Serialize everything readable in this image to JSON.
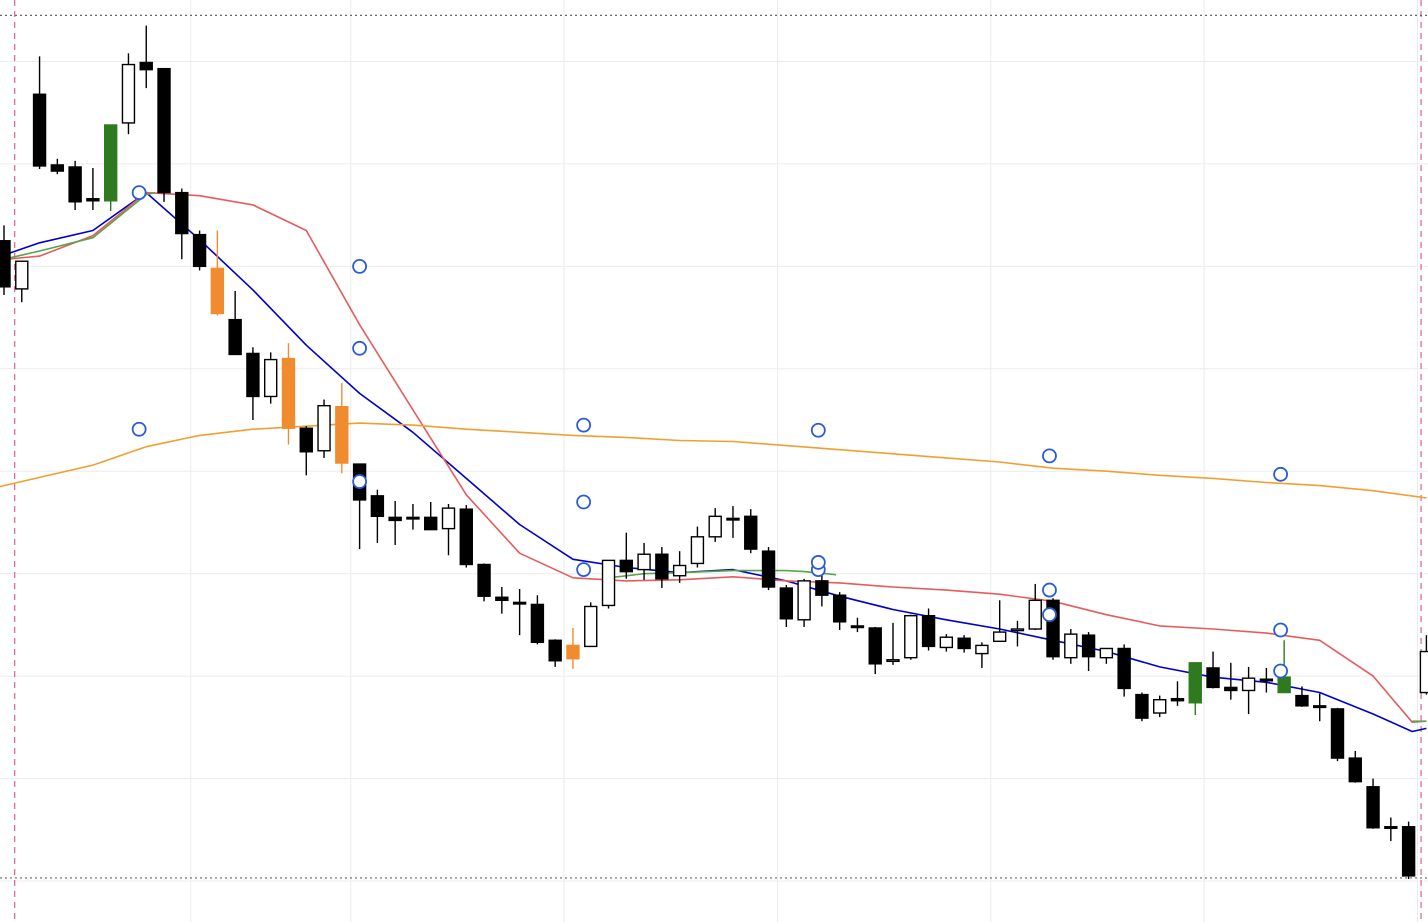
{
  "chart_data": {
    "type": "candlestick",
    "title": "",
    "xlabel": "",
    "ylabel": "",
    "grid": true,
    "ylim": [
      -0.4,
      8.6
    ],
    "colors": {
      "bear": "#000000",
      "bull_fill": "#ffffff",
      "up_marker": "#2f7a1f",
      "down_marker": "#f08c2e",
      "ma_fast": "#0000cc",
      "ma_mid": "#e65c5c",
      "ma_slow": "#f0a030",
      "ma_alt": "#5aa34a",
      "marker_ring": "#2a5bd7",
      "session_line": "#e06aa0",
      "bound_line": "#666666"
    },
    "candles": [
      {
        "i": 0,
        "o": 6.25,
        "h": 6.4,
        "l": 5.72,
        "c": 5.8,
        "kind": "bear"
      },
      {
        "i": 1,
        "o": 5.78,
        "h": 6.05,
        "l": 5.65,
        "c": 6.05,
        "kind": "bull"
      },
      {
        "i": 2,
        "o": 7.68,
        "h": 8.05,
        "l": 6.95,
        "c": 6.98,
        "kind": "bear"
      },
      {
        "i": 3,
        "o": 6.99,
        "h": 7.05,
        "l": 6.9,
        "c": 6.93,
        "kind": "bear"
      },
      {
        "i": 4,
        "o": 6.97,
        "h": 7.03,
        "l": 6.55,
        "c": 6.63,
        "kind": "bear"
      },
      {
        "i": 5,
        "o": 6.66,
        "h": 6.96,
        "l": 6.55,
        "c": 6.64,
        "kind": "bear"
      },
      {
        "i": 6,
        "o": 6.64,
        "h": 7.38,
        "l": 6.54,
        "c": 7.38,
        "kind": "up-marker"
      },
      {
        "i": 7,
        "o": 7.4,
        "h": 8.08,
        "l": 7.29,
        "c": 7.97,
        "kind": "bull"
      },
      {
        "i": 8,
        "o": 7.99,
        "h": 8.35,
        "l": 7.74,
        "c": 7.92,
        "kind": "bear"
      },
      {
        "i": 9,
        "o": 7.93,
        "h": 7.93,
        "l": 6.63,
        "c": 6.72,
        "kind": "bear"
      },
      {
        "i": 10,
        "o": 6.72,
        "h": 6.76,
        "l": 6.07,
        "c": 6.32,
        "kind": "bear"
      },
      {
        "i": 11,
        "o": 6.31,
        "h": 6.35,
        "l": 5.96,
        "c": 6.0,
        "kind": "bear"
      },
      {
        "i": 12,
        "o": 5.98,
        "h": 6.35,
        "l": 5.52,
        "c": 5.54,
        "kind": "down-marker"
      },
      {
        "i": 13,
        "o": 5.48,
        "h": 5.76,
        "l": 5.14,
        "c": 5.14,
        "kind": "bear"
      },
      {
        "i": 14,
        "o": 5.15,
        "h": 5.21,
        "l": 4.5,
        "c": 4.73,
        "kind": "bear"
      },
      {
        "i": 15,
        "o": 4.73,
        "h": 5.16,
        "l": 4.66,
        "c": 5.09,
        "kind": "bull"
      },
      {
        "i": 16,
        "o": 5.1,
        "h": 5.25,
        "l": 4.26,
        "c": 4.42,
        "kind": "down-marker"
      },
      {
        "i": 17,
        "o": 4.42,
        "h": 4.44,
        "l": 3.96,
        "c": 4.19,
        "kind": "bear"
      },
      {
        "i": 18,
        "o": 4.2,
        "h": 4.7,
        "l": 4.13,
        "c": 4.64,
        "kind": "bull"
      },
      {
        "i": 19,
        "o": 4.63,
        "h": 4.86,
        "l": 3.98,
        "c": 4.08,
        "kind": "down-marker"
      },
      {
        "i": 20,
        "o": 4.07,
        "h": 4.07,
        "l": 3.24,
        "c": 3.72,
        "kind": "bear"
      },
      {
        "i": 21,
        "o": 3.76,
        "h": 3.82,
        "l": 3.3,
        "c": 3.56,
        "kind": "bear"
      },
      {
        "i": 22,
        "o": 3.55,
        "h": 3.71,
        "l": 3.28,
        "c": 3.52,
        "kind": "bear"
      },
      {
        "i": 23,
        "o": 3.55,
        "h": 3.68,
        "l": 3.43,
        "c": 3.54,
        "kind": "bear"
      },
      {
        "i": 24,
        "o": 3.55,
        "h": 3.7,
        "l": 3.43,
        "c": 3.43,
        "kind": "bear"
      },
      {
        "i": 25,
        "o": 3.44,
        "h": 3.68,
        "l": 3.18,
        "c": 3.64,
        "kind": "bull"
      },
      {
        "i": 26,
        "o": 3.63,
        "h": 3.67,
        "l": 3.06,
        "c": 3.09,
        "kind": "bear"
      },
      {
        "i": 27,
        "o": 3.09,
        "h": 3.1,
        "l": 2.73,
        "c": 2.78,
        "kind": "bear"
      },
      {
        "i": 28,
        "o": 2.77,
        "h": 2.87,
        "l": 2.61,
        "c": 2.74,
        "kind": "bear"
      },
      {
        "i": 29,
        "o": 2.72,
        "h": 2.85,
        "l": 2.4,
        "c": 2.72,
        "kind": "bear"
      },
      {
        "i": 30,
        "o": 2.7,
        "h": 2.79,
        "l": 2.31,
        "c": 2.33,
        "kind": "bear"
      },
      {
        "i": 31,
        "o": 2.35,
        "h": 2.36,
        "l": 2.09,
        "c": 2.15,
        "kind": "bear"
      },
      {
        "i": 32,
        "o": 2.3,
        "h": 2.47,
        "l": 2.07,
        "c": 2.17,
        "kind": "down-marker"
      },
      {
        "i": 33,
        "o": 2.29,
        "h": 2.72,
        "l": 2.29,
        "c": 2.68,
        "kind": "bull"
      },
      {
        "i": 34,
        "o": 2.69,
        "h": 3.13,
        "l": 2.66,
        "c": 3.13,
        "kind": "bull"
      },
      {
        "i": 35,
        "o": 3.13,
        "h": 3.4,
        "l": 2.95,
        "c": 3.02,
        "kind": "bear"
      },
      {
        "i": 36,
        "o": 3.04,
        "h": 3.3,
        "l": 2.94,
        "c": 3.19,
        "kind": "bull"
      },
      {
        "i": 37,
        "o": 3.19,
        "h": 3.26,
        "l": 2.86,
        "c": 2.95,
        "kind": "bear"
      },
      {
        "i": 38,
        "o": 2.98,
        "h": 3.22,
        "l": 2.91,
        "c": 3.08,
        "kind": "bull"
      },
      {
        "i": 39,
        "o": 3.1,
        "h": 3.46,
        "l": 3.06,
        "c": 3.36,
        "kind": "bull"
      },
      {
        "i": 40,
        "o": 3.36,
        "h": 3.64,
        "l": 3.31,
        "c": 3.56,
        "kind": "bull"
      },
      {
        "i": 41,
        "o": 3.54,
        "h": 3.66,
        "l": 3.35,
        "c": 3.54,
        "kind": "bear"
      },
      {
        "i": 42,
        "o": 3.56,
        "h": 3.63,
        "l": 3.2,
        "c": 3.24,
        "kind": "bear"
      },
      {
        "i": 43,
        "o": 3.22,
        "h": 3.26,
        "l": 2.84,
        "c": 2.87,
        "kind": "bear"
      },
      {
        "i": 44,
        "o": 2.86,
        "h": 2.89,
        "l": 2.48,
        "c": 2.56,
        "kind": "bear"
      },
      {
        "i": 45,
        "o": 2.55,
        "h": 2.95,
        "l": 2.48,
        "c": 2.93,
        "kind": "bull"
      },
      {
        "i": 46,
        "o": 2.93,
        "h": 3.03,
        "l": 2.68,
        "c": 2.79,
        "kind": "bear"
      },
      {
        "i": 47,
        "o": 2.79,
        "h": 2.82,
        "l": 2.45,
        "c": 2.53,
        "kind": "bear"
      },
      {
        "i": 48,
        "o": 2.49,
        "h": 2.57,
        "l": 2.43,
        "c": 2.49,
        "kind": "bear"
      },
      {
        "i": 49,
        "o": 2.47,
        "h": 2.48,
        "l": 2.02,
        "c": 2.12,
        "kind": "bear"
      },
      {
        "i": 50,
        "o": 2.15,
        "h": 2.52,
        "l": 2.11,
        "c": 2.16,
        "kind": "bull"
      },
      {
        "i": 51,
        "o": 2.18,
        "h": 2.6,
        "l": 2.16,
        "c": 2.59,
        "kind": "bull"
      },
      {
        "i": 52,
        "o": 2.59,
        "h": 2.66,
        "l": 2.25,
        "c": 2.29,
        "kind": "bear"
      },
      {
        "i": 53,
        "o": 2.28,
        "h": 2.41,
        "l": 2.24,
        "c": 2.38,
        "kind": "bull"
      },
      {
        "i": 54,
        "o": 2.37,
        "h": 2.4,
        "l": 2.23,
        "c": 2.27,
        "kind": "bear"
      },
      {
        "i": 55,
        "o": 2.22,
        "h": 2.33,
        "l": 2.08,
        "c": 2.3,
        "kind": "bull"
      },
      {
        "i": 56,
        "o": 2.34,
        "h": 2.74,
        "l": 2.34,
        "c": 2.43,
        "kind": "bull"
      },
      {
        "i": 57,
        "o": 2.45,
        "h": 2.54,
        "l": 2.29,
        "c": 2.46,
        "kind": "bull"
      },
      {
        "i": 58,
        "o": 2.46,
        "h": 2.9,
        "l": 2.45,
        "c": 2.74,
        "kind": "bull"
      },
      {
        "i": 59,
        "o": 2.74,
        "h": 2.76,
        "l": 2.16,
        "c": 2.19,
        "kind": "bear"
      },
      {
        "i": 60,
        "o": 2.18,
        "h": 2.46,
        "l": 2.12,
        "c": 2.41,
        "kind": "bull"
      },
      {
        "i": 61,
        "o": 2.4,
        "h": 2.43,
        "l": 2.05,
        "c": 2.19,
        "kind": "bear"
      },
      {
        "i": 62,
        "o": 2.18,
        "h": 2.27,
        "l": 2.12,
        "c": 2.27,
        "kind": "bull"
      },
      {
        "i": 63,
        "o": 2.27,
        "h": 2.31,
        "l": 1.8,
        "c": 1.88,
        "kind": "bear"
      },
      {
        "i": 64,
        "o": 1.82,
        "h": 1.84,
        "l": 1.56,
        "c": 1.59,
        "kind": "bear"
      },
      {
        "i": 65,
        "o": 1.64,
        "h": 1.81,
        "l": 1.6,
        "c": 1.77,
        "kind": "bull"
      },
      {
        "i": 66,
        "o": 1.78,
        "h": 1.95,
        "l": 1.71,
        "c": 1.76,
        "kind": "bear"
      },
      {
        "i": 67,
        "o": 1.74,
        "h": 2.08,
        "l": 1.62,
        "c": 2.13,
        "kind": "up-marker"
      },
      {
        "i": 68,
        "o": 2.08,
        "h": 2.24,
        "l": 1.88,
        "c": 1.89,
        "kind": "bear"
      },
      {
        "i": 69,
        "o": 1.89,
        "h": 2.13,
        "l": 1.77,
        "c": 1.86,
        "kind": "bear"
      },
      {
        "i": 70,
        "o": 1.86,
        "h": 2.09,
        "l": 1.63,
        "c": 1.98,
        "kind": "bull"
      },
      {
        "i": 71,
        "o": 1.97,
        "h": 2.08,
        "l": 1.84,
        "c": 1.96,
        "kind": "bear"
      },
      {
        "i": 72,
        "o": 1.99,
        "h": 2.35,
        "l": 1.84,
        "c": 1.84,
        "kind": "up-marker"
      },
      {
        "i": 73,
        "o": 1.81,
        "h": 1.9,
        "l": 1.7,
        "c": 1.71,
        "kind": "bear"
      },
      {
        "i": 74,
        "o": 1.71,
        "h": 1.83,
        "l": 1.56,
        "c": 1.7,
        "kind": "bear"
      },
      {
        "i": 75,
        "o": 1.68,
        "h": 1.69,
        "l": 1.17,
        "c": 1.2,
        "kind": "bear"
      },
      {
        "i": 76,
        "o": 1.2,
        "h": 1.27,
        "l": 0.96,
        "c": 0.97,
        "kind": "bear"
      },
      {
        "i": 77,
        "o": 0.92,
        "h": 1.0,
        "l": 0.51,
        "c": 0.52,
        "kind": "bear"
      },
      {
        "i": 78,
        "o": 0.53,
        "h": 0.62,
        "l": 0.39,
        "c": 0.52,
        "kind": "bear"
      },
      {
        "i": 79,
        "o": 0.53,
        "h": 0.58,
        "l": 0.02,
        "c": 0.05,
        "kind": "bear"
      },
      {
        "i": 80,
        "o": 1.84,
        "h": 2.4,
        "l": 1.82,
        "c": 2.24,
        "kind": "bull"
      }
    ],
    "series": [
      {
        "name": "",
        "key": "ma_fast",
        "x": [
          -1,
          2,
          5,
          8,
          11,
          14,
          17,
          20,
          23,
          26,
          29,
          32,
          35,
          38,
          41,
          44,
          47,
          50,
          53,
          56,
          59,
          62,
          65,
          68,
          71,
          74,
          77,
          79.2,
          80
        ],
        "y": [
          6.05,
          6.23,
          6.35,
          6.72,
          6.26,
          5.77,
          5.23,
          4.76,
          4.38,
          3.93,
          3.48,
          3.14,
          3.06,
          3.01,
          3.04,
          2.93,
          2.78,
          2.65,
          2.55,
          2.46,
          2.35,
          2.24,
          2.09,
          1.99,
          1.94,
          1.84,
          1.63,
          1.46,
          1.49
        ]
      },
      {
        "name": "",
        "key": "ma_mid",
        "x": [
          -1,
          2,
          5,
          8,
          11,
          14,
          17,
          20,
          23,
          26,
          29,
          32,
          35,
          38,
          41,
          44,
          47,
          50,
          53,
          56,
          59,
          62,
          65,
          68,
          71,
          74,
          77,
          79.2,
          80
        ],
        "y": [
          6.05,
          6.1,
          6.3,
          6.72,
          6.69,
          6.6,
          6.35,
          5.43,
          4.6,
          3.77,
          3.2,
          2.96,
          2.93,
          2.94,
          2.97,
          2.93,
          2.91,
          2.87,
          2.84,
          2.8,
          2.73,
          2.6,
          2.49,
          2.46,
          2.42,
          2.35,
          2.0,
          1.55,
          1.56
        ]
      },
      {
        "name": "",
        "key": "ma_alt",
        "x": [
          -1,
          2,
          5,
          8,
          8.5
        ],
        "y": [
          6.03,
          6.15,
          6.28,
          6.7,
          6.72
        ]
      },
      {
        "name": "",
        "key": "ma_alt2",
        "x": [
          34,
          36,
          38,
          41,
          44,
          45,
          46.8
        ],
        "y": [
          2.96,
          3.0,
          3.01,
          3.03,
          3.03,
          3.02,
          2.99
        ]
      },
      {
        "name": "",
        "key": "ma_alt3",
        "x": [
          79.2,
          80
        ],
        "y": [
          1.56,
          1.56
        ]
      },
      {
        "name": "",
        "key": "ma_slow",
        "x": [
          -1,
          2,
          5,
          8,
          11,
          14,
          17,
          20,
          23,
          26,
          29,
          32,
          35,
          38,
          41,
          44,
          47,
          50,
          53,
          56,
          59,
          62,
          65,
          68,
          71,
          74,
          77,
          80
        ],
        "y": [
          3.82,
          3.94,
          4.06,
          4.24,
          4.35,
          4.41,
          4.44,
          4.47,
          4.45,
          4.41,
          4.38,
          4.35,
          4.33,
          4.3,
          4.29,
          4.25,
          4.21,
          4.17,
          4.13,
          4.09,
          4.03,
          4.0,
          3.96,
          3.93,
          3.89,
          3.86,
          3.81,
          3.74
        ]
      }
    ],
    "markers": [
      {
        "x": 7.6,
        "y": 6.72
      },
      {
        "x": 20,
        "y": 6.0
      },
      {
        "x": 20,
        "y": 5.2
      },
      {
        "x": 20,
        "y": 3.9
      },
      {
        "x": 7.6,
        "y": 4.41
      },
      {
        "x": 32.6,
        "y": 4.45
      },
      {
        "x": 32.6,
        "y": 3.7
      },
      {
        "x": 32.6,
        "y": 3.04
      },
      {
        "x": 45.8,
        "y": 4.4
      },
      {
        "x": 45.8,
        "y": 3.04
      },
      {
        "x": 45.8,
        "y": 3.11
      },
      {
        "x": 58.8,
        "y": 4.15
      },
      {
        "x": 58.8,
        "y": 2.84
      },
      {
        "x": 58.8,
        "y": 2.6
      },
      {
        "x": 71.8,
        "y": 3.97
      },
      {
        "x": 71.8,
        "y": 2.45
      },
      {
        "x": 71.8,
        "y": 2.05
      }
    ],
    "session_lines_x": [
      0.6,
      79.7
    ],
    "bounds_y": [
      8.45,
      0.03
    ]
  }
}
